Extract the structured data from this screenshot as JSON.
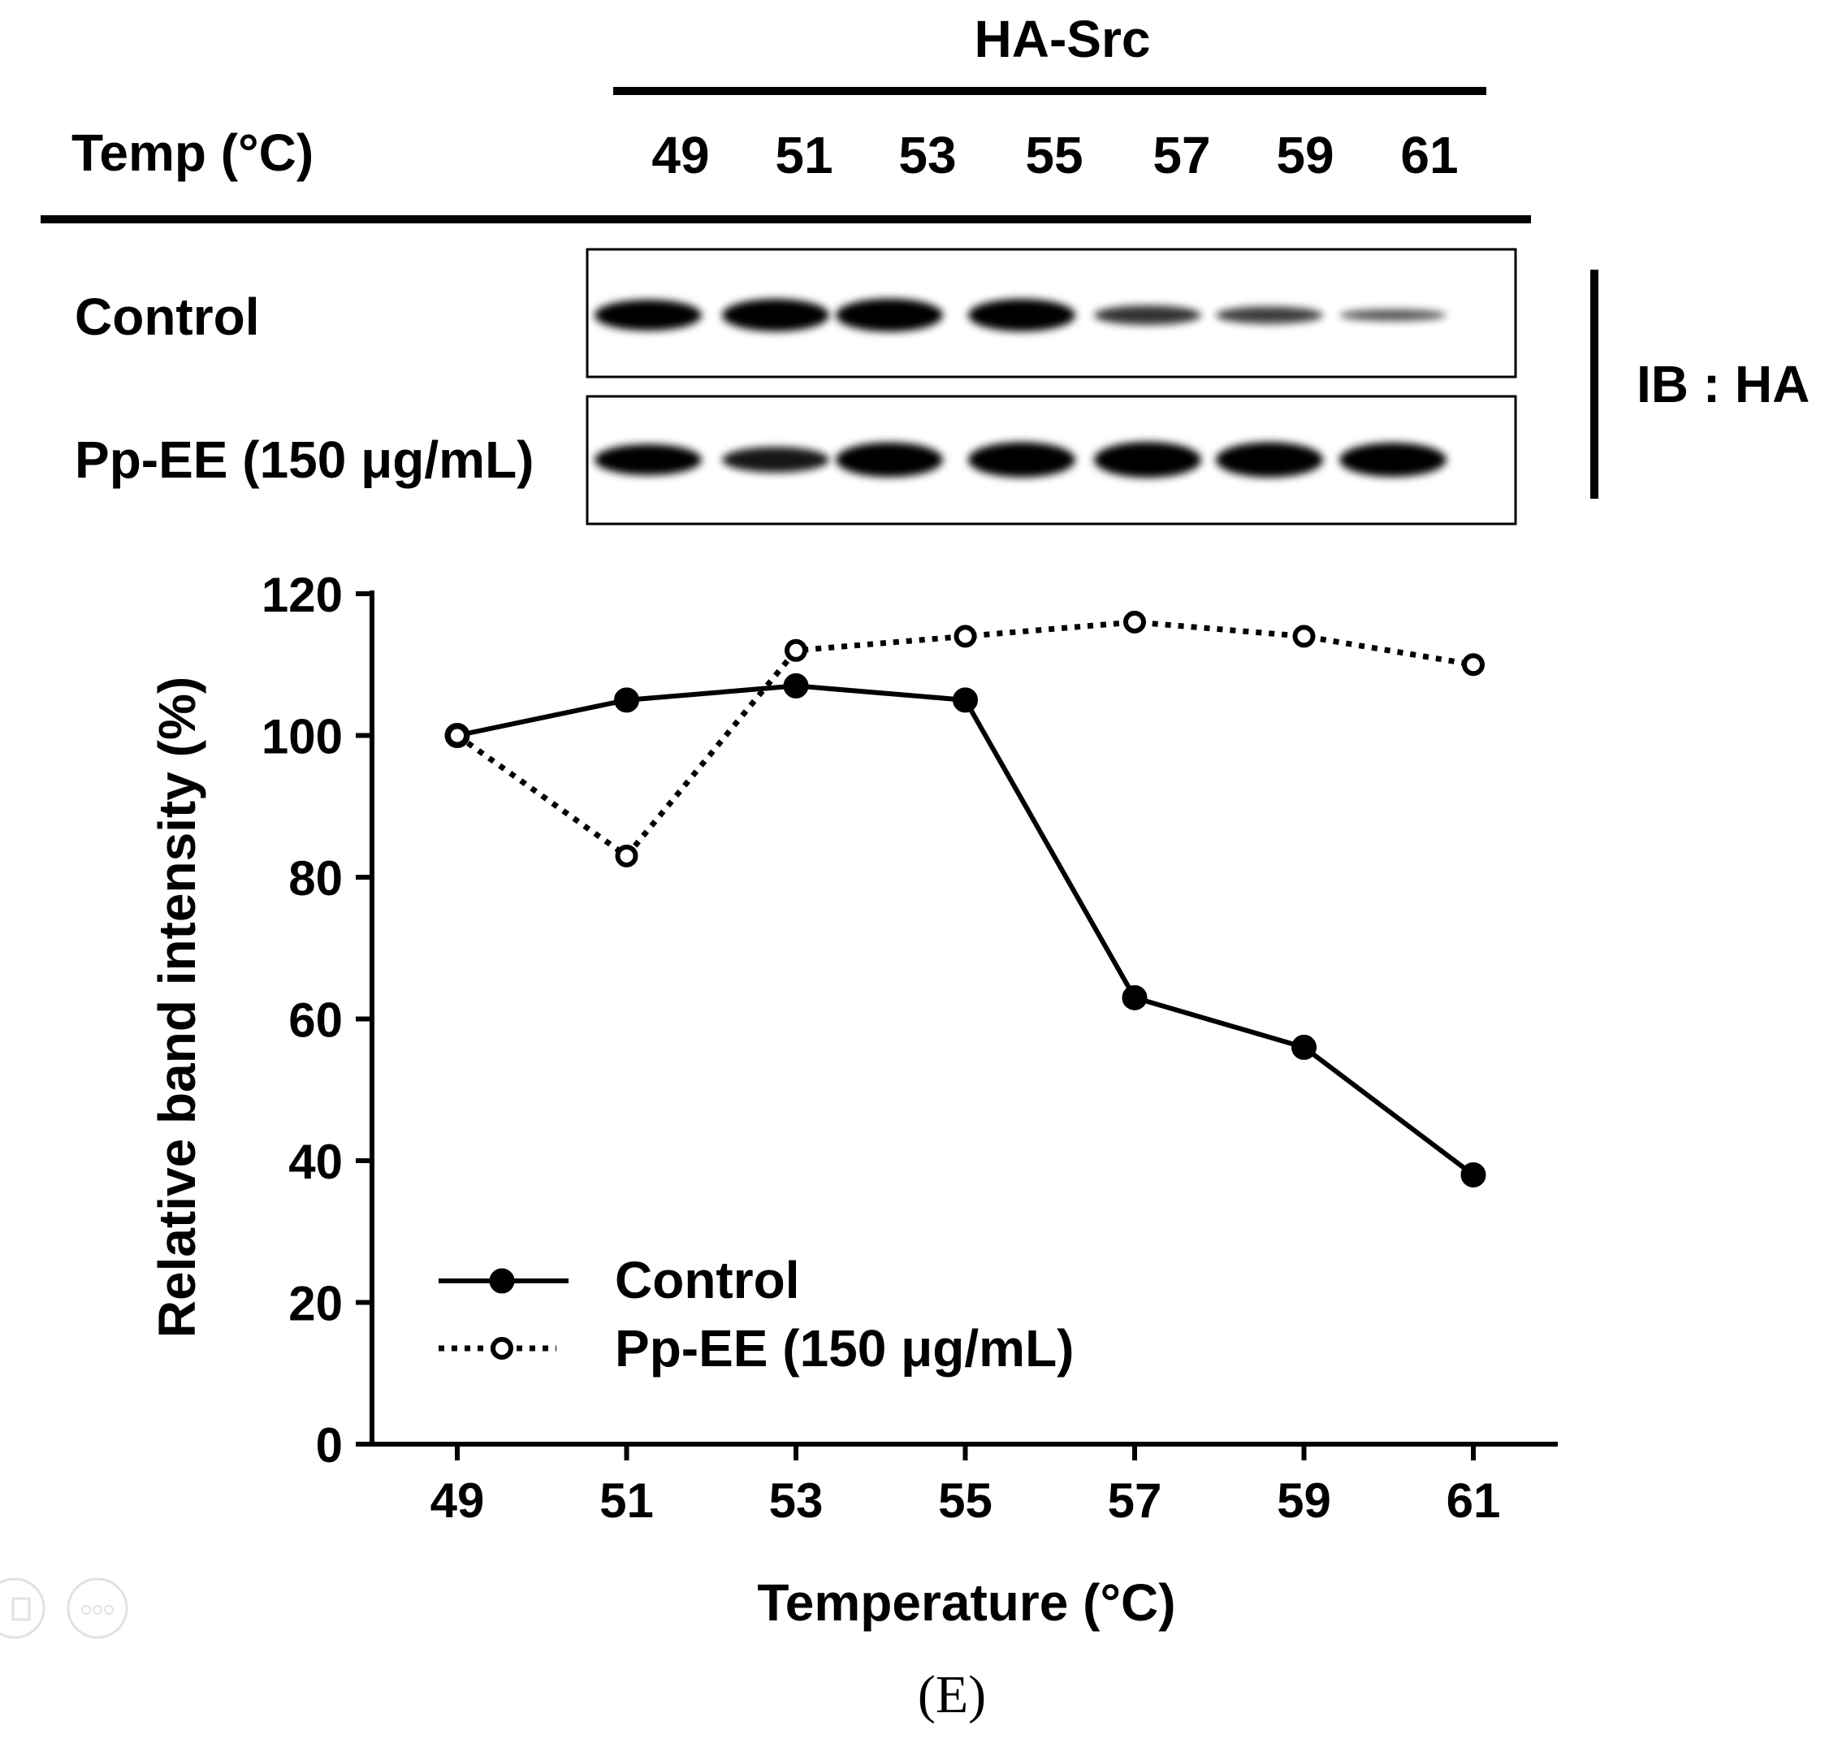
{
  "blot": {
    "group_label": "HA-Src",
    "temp_header": "Temp (°C)",
    "temperatures": [
      "49",
      "51",
      "53",
      "55",
      "57",
      "59",
      "61"
    ],
    "rows": [
      {
        "label": "Control",
        "band_intensity": [
          100,
          105,
          107,
          105,
          63,
          56,
          38
        ]
      },
      {
        "label": "Pp-EE (150 μg/mL)",
        "band_intensity": [
          100,
          83,
          112,
          114,
          116,
          114,
          110
        ]
      }
    ],
    "antibody_label": "IB : HA"
  },
  "chart_data": {
    "type": "line",
    "title": "",
    "xlabel": "Temperature (°C)",
    "ylabel": "Relative band intensity (%)",
    "categories": [
      "49",
      "51",
      "53",
      "55",
      "57",
      "59",
      "61"
    ],
    "ylim": [
      0,
      120
    ],
    "yticks": [
      0,
      20,
      40,
      60,
      80,
      100,
      120
    ],
    "grid": false,
    "legend_position": "bottom-left",
    "series": [
      {
        "name": "Control",
        "style": "solid",
        "marker": "filled-circle",
        "values": [
          100,
          105,
          107,
          105,
          63,
          56,
          38
        ]
      },
      {
        "name": "Pp-EE (150 μg/mL)",
        "style": "dotted",
        "marker": "open-circle",
        "values": [
          100,
          83,
          112,
          114,
          116,
          114,
          110
        ]
      }
    ]
  },
  "panel_label": "(E)",
  "colors": {
    "ink": "#000000",
    "background": "#ffffff",
    "faint_icon": "#cccccc"
  }
}
